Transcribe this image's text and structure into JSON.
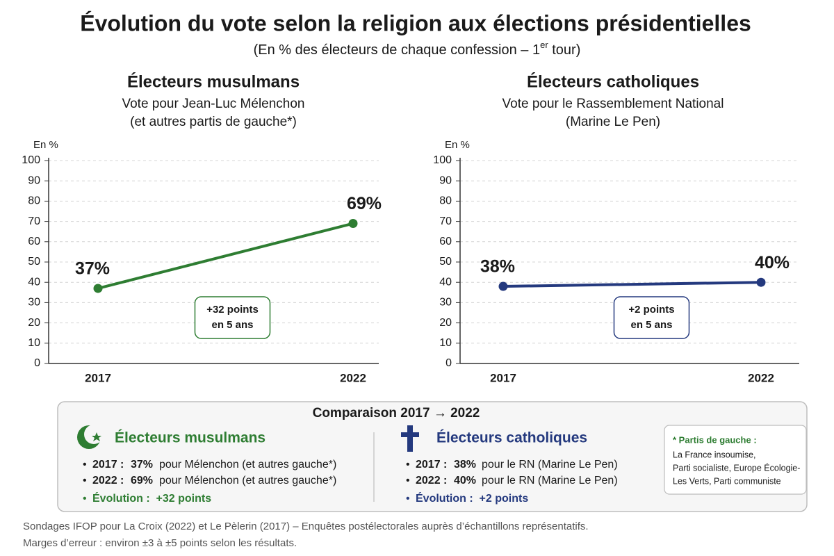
{
  "title": "Évolution du vote selon la religion aux élections présidentielles",
  "subtitle": [
    "(En % des électeurs de chaque confession – 1",
    "er",
    " tour)"
  ],
  "chart_data": [
    {
      "type": "line",
      "title": "Électeurs musulmans",
      "subtitle": [
        "Vote pour Jean-Luc Mélenchon",
        "(et autres partis de gauche*)"
      ],
      "ylabel": "En %",
      "categories": [
        "2017",
        "2022"
      ],
      "series": [
        {
          "color": "#2e7d32",
          "values": [
            37,
            69
          ],
          "value_labels": [
            "37%",
            "69%"
          ]
        }
      ],
      "ylim": [
        0,
        100
      ],
      "yticks": [
        0,
        10,
        20,
        30,
        40,
        50,
        60,
        70,
        80,
        90,
        100
      ],
      "grid": true,
      "annotation": [
        "+32 points",
        "en 5 ans"
      ]
    },
    {
      "type": "line",
      "title": "Électeurs catholiques",
      "subtitle": [
        "Vote pour le Rassemblement National",
        "(Marine Le Pen)"
      ],
      "ylabel": "En %",
      "categories": [
        "2017",
        "2022"
      ],
      "series": [
        {
          "color": "#24397e",
          "values": [
            38,
            40
          ],
          "value_labels": [
            "38%",
            "40%"
          ]
        }
      ],
      "ylim": [
        0,
        100
      ],
      "yticks": [
        0,
        10,
        20,
        30,
        40,
        50,
        60,
        70,
        80,
        90,
        100
      ],
      "grid": true,
      "annotation": [
        "+2 points",
        "en 5 ans"
      ]
    }
  ],
  "comparison": {
    "title": "Comparaison 2017 → 2022",
    "groups": [
      {
        "title": "Électeurs musulmans",
        "rows": [
          {
            "label": "2017 :",
            "value": "37%",
            "text": "pour Mélenchon (et autres gauche*)"
          },
          {
            "label": "2022 :",
            "value": "69%",
            "text": "pour Mélenchon (et autres gauche*)"
          }
        ],
        "evolution": "Évolution :  +32 points"
      },
      {
        "title": "Électeurs catholiques",
        "rows": [
          {
            "label": "2017 :",
            "value": "38%",
            "text": "pour le RN (Marine Le Pen)"
          },
          {
            "label": "2022 :",
            "value": "40%",
            "text": "pour le RN (Marine Le Pen)"
          }
        ],
        "evolution": "Évolution :  +2 points"
      }
    ],
    "note": {
      "title": "* Partis de gauche :",
      "lines": [
        "La France insoumise,",
        "Parti socialiste, Europe Écologie-",
        "Les Verts, Parti communiste"
      ]
    }
  },
  "footer": [
    "Sondages IFOP pour La Croix (2022) et Le Pèlerin (2017) – Enquêtes postélectorales auprès d’échantillons représentatifs.",
    "Marges d’erreur : environ ±3 à ±5 points selon les résultats."
  ]
}
